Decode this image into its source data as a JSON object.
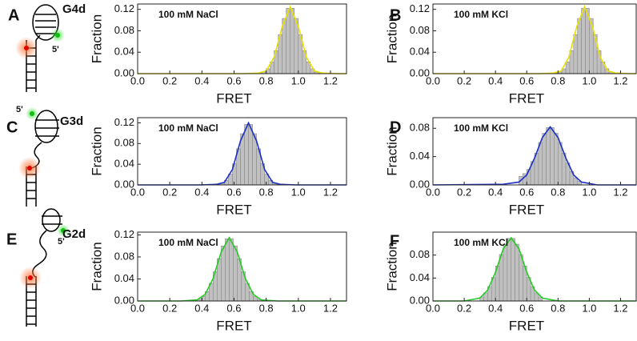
{
  "chart_data": [
    {
      "type": "histogram",
      "panel": "A",
      "annotation": "100 mM NaCl",
      "xlabel": "FRET",
      "ylabel": "Fraction",
      "color": "#c0c0c0",
      "bins": [
        0.75,
        0.775,
        0.8,
        0.825,
        0.85,
        0.875,
        0.9,
        0.925,
        0.95,
        0.975,
        1.0,
        1.025,
        1.05,
        1.075,
        1.1,
        1.125,
        1.15
      ],
      "values": [
        0.001,
        0.003,
        0.009,
        0.022,
        0.043,
        0.073,
        0.103,
        0.122,
        0.122,
        0.103,
        0.073,
        0.043,
        0.022,
        0.009,
        0.003,
        0.001
      ],
      "fit": {
        "color": "#e8e000",
        "x": [
          0,
          0.65,
          0.75,
          0.8,
          0.85,
          0.9,
          0.95,
          1.0,
          1.05,
          1.1,
          1.15,
          1.25,
          1.3
        ],
        "values": [
          0,
          0,
          0.001,
          0.005,
          0.031,
          0.088,
          0.125,
          0.088,
          0.031,
          0.005,
          0.001,
          0,
          0
        ]
      },
      "xlim": [
        0,
        1.3
      ],
      "ylim": [
        0,
        0.13
      ],
      "xticks": [
        {
          "value": 0,
          "label": "0.0"
        },
        0.2,
        0.4,
        0.6,
        0.8,
        {
          "value": 1,
          "label": "1.0"
        },
        1.2
      ],
      "yticks": [
        {
          "value": 0,
          "label": "0.00"
        },
        0.04,
        0.08,
        0.12
      ]
    },
    {
      "type": "histogram",
      "panel": "B",
      "annotation": "100 mM KCl",
      "xlabel": "FRET",
      "ylabel": "Fraction",
      "color": "#c0c0c0",
      "bins": [
        0.775,
        0.8,
        0.825,
        0.85,
        0.875,
        0.9,
        0.925,
        0.95,
        0.975,
        1.0,
        1.025,
        1.05,
        1.075,
        1.1,
        1.125,
        1.15,
        1.175
      ],
      "values": [
        0.001,
        0.003,
        0.009,
        0.022,
        0.043,
        0.073,
        0.103,
        0.122,
        0.122,
        0.103,
        0.073,
        0.043,
        0.022,
        0.009,
        0.003,
        0.001
      ],
      "fit": {
        "color": "#e8e000",
        "x": [
          0,
          0.67,
          0.77,
          0.82,
          0.87,
          0.92,
          0.97,
          1.02,
          1.07,
          1.12,
          1.17,
          1.27,
          1.3
        ],
        "values": [
          0,
          0,
          0.001,
          0.005,
          0.031,
          0.088,
          0.125,
          0.088,
          0.031,
          0.005,
          0.001,
          0,
          0
        ]
      },
      "xlim": [
        0,
        1.3
      ],
      "ylim": [
        0,
        0.13
      ],
      "xticks": [
        {
          "value": 0,
          "label": "0.0"
        },
        0.2,
        0.4,
        0.6,
        0.8,
        {
          "value": 1,
          "label": "1.0"
        },
        1.2
      ],
      "yticks": [
        {
          "value": 0,
          "label": "0.00"
        },
        0.04,
        0.08,
        0.12
      ]
    },
    {
      "type": "histogram",
      "panel": "C",
      "annotation": "100 mM NaCl",
      "xlabel": "FRET",
      "ylabel": "Fraction",
      "color": "#c0c0c0",
      "bins": [
        0.49,
        0.515,
        0.54,
        0.565,
        0.59,
        0.615,
        0.64,
        0.665,
        0.69,
        0.715,
        0.74,
        0.765,
        0.79,
        0.815,
        0.84,
        0.865,
        0.89
      ],
      "values": [
        0.001,
        0.003,
        0.009,
        0.021,
        0.041,
        0.07,
        0.099,
        0.117,
        0.117,
        0.099,
        0.07,
        0.041,
        0.021,
        0.009,
        0.003,
        0.001
      ],
      "fit": {
        "color": "#1c2fc8",
        "x": [
          0,
          0.39,
          0.49,
          0.54,
          0.59,
          0.64,
          0.69,
          0.74,
          0.79,
          0.84,
          0.89,
          0.99,
          1.3
        ],
        "values": [
          0,
          0,
          0.001,
          0.005,
          0.03,
          0.085,
          0.12,
          0.085,
          0.03,
          0.005,
          0.001,
          0,
          0
        ]
      },
      "xlim": [
        0,
        1.3
      ],
      "ylim": [
        0,
        0.13
      ],
      "xticks": [
        {
          "value": 0,
          "label": "0.0"
        },
        0.2,
        0.4,
        0.6,
        0.8,
        {
          "value": 1,
          "label": "1.0"
        },
        1.2
      ],
      "yticks": [
        {
          "value": 0,
          "label": "0.00"
        },
        0.04,
        0.08,
        0.12
      ]
    },
    {
      "type": "histogram",
      "panel": "D",
      "annotation": "100 mM KCl",
      "xlabel": "FRET",
      "ylabel": "Fraction",
      "color": "#c0c0c0",
      "bins": [
        0.55,
        0.575,
        0.6,
        0.625,
        0.65,
        0.675,
        0.7,
        0.725,
        0.75,
        0.775,
        0.8,
        0.825,
        0.85,
        0.875,
        0.9,
        0.925,
        0.95
      ],
      "values": [
        0.012,
        0.016,
        0.022,
        0.033,
        0.045,
        0.06,
        0.073,
        0.081,
        0.081,
        0.073,
        0.06,
        0.045,
        0.031,
        0.019,
        0.01,
        0.005
      ],
      "fit": {
        "color": "#1c2fc8",
        "x": [
          0,
          0.45,
          0.55,
          0.6,
          0.65,
          0.7,
          0.75,
          0.8,
          0.85,
          0.9,
          0.95,
          1.05,
          1.3
        ],
        "values": [
          0,
          0.001,
          0.004,
          0.014,
          0.038,
          0.067,
          0.082,
          0.067,
          0.038,
          0.014,
          0.004,
          0,
          0
        ]
      },
      "xlim": [
        0,
        1.3
      ],
      "ylim": [
        0,
        0.095
      ],
      "xticks": [
        {
          "value": 0,
          "label": "0.0"
        },
        0.2,
        0.4,
        0.6,
        0.8,
        {
          "value": 1,
          "label": "1.0"
        },
        1.2
      ],
      "yticks": [
        {
          "value": 0,
          "label": "0.00"
        },
        0.04,
        0.08
      ]
    },
    {
      "type": "histogram",
      "panel": "E",
      "annotation": "100 mM NaCl",
      "xlabel": "FRET",
      "ylabel": "Fraction",
      "color": "#c0c0c0",
      "bins": [
        0.37,
        0.395,
        0.42,
        0.445,
        0.47,
        0.495,
        0.52,
        0.545,
        0.57,
        0.595,
        0.62,
        0.645,
        0.67,
        0.695,
        0.72,
        0.745,
        0.77
      ],
      "values": [
        0.003,
        0.008,
        0.017,
        0.032,
        0.053,
        0.077,
        0.1,
        0.113,
        0.113,
        0.1,
        0.077,
        0.053,
        0.032,
        0.017,
        0.008,
        0.003
      ],
      "fit": {
        "color": "#22cc22",
        "x": [
          0,
          0.27,
          0.37,
          0.42,
          0.47,
          0.52,
          0.57,
          0.62,
          0.67,
          0.72,
          0.77,
          0.87,
          1.3
        ],
        "values": [
          0,
          0,
          0.002,
          0.012,
          0.041,
          0.089,
          0.115,
          0.089,
          0.041,
          0.012,
          0.002,
          0,
          0
        ]
      },
      "xlim": [
        0,
        1.3
      ],
      "ylim": [
        0,
        0.125
      ],
      "xticks": [
        {
          "value": 0,
          "label": "0.0"
        },
        0.2,
        0.4,
        0.6,
        0.8,
        {
          "value": 1,
          "label": "1.0"
        },
        1.2
      ],
      "yticks": [
        {
          "value": 0,
          "label": "0.00"
        },
        0.04,
        0.08,
        0.12
      ]
    },
    {
      "type": "histogram",
      "panel": "F",
      "annotation": "100 mM KCl",
      "xlabel": "FRET",
      "ylabel": "Fraction",
      "color": "#c0c0c0",
      "bins": [
        0.3,
        0.325,
        0.35,
        0.375,
        0.4,
        0.425,
        0.45,
        0.475,
        0.5,
        0.525,
        0.55,
        0.575,
        0.6,
        0.625,
        0.65,
        0.675,
        0.7
      ],
      "values": [
        0.007,
        0.014,
        0.025,
        0.041,
        0.061,
        0.081,
        0.099,
        0.109,
        0.109,
        0.099,
        0.081,
        0.061,
        0.041,
        0.025,
        0.014,
        0.007
      ],
      "fit": {
        "color": "#22cc22",
        "x": [
          0,
          0.2,
          0.3,
          0.35,
          0.4,
          0.45,
          0.5,
          0.55,
          0.6,
          0.65,
          0.7,
          0.8,
          1.3
        ],
        "values": [
          0,
          0,
          0.005,
          0.019,
          0.05,
          0.091,
          0.11,
          0.091,
          0.05,
          0.019,
          0.005,
          0,
          0
        ]
      },
      "xlim": [
        0,
        1.3
      ],
      "ylim": [
        0,
        0.12
      ],
      "xticks": [
        {
          "value": 0,
          "label": "0.0"
        },
        0.2,
        0.4,
        0.6,
        0.8,
        {
          "value": 1,
          "label": "1.0"
        },
        1.2
      ],
      "yticks": [
        {
          "value": 0,
          "label": "0.00"
        },
        0.04,
        0.08
      ]
    }
  ],
  "diagrams": [
    {
      "label": "G4d",
      "end_label": "5'"
    },
    {
      "label": "G3d",
      "end_label": "5'"
    },
    {
      "label": "G2d",
      "end_label": "5'"
    }
  ]
}
